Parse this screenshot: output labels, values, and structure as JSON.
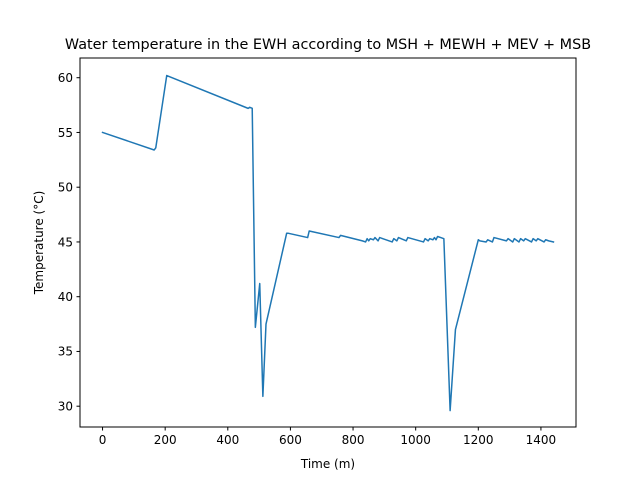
{
  "chart_data": {
    "type": "line",
    "title": "Water temperature in the EWH according to MSH + MEWH + MEV + MSB",
    "xlabel": "Time (m)",
    "ylabel": "Temperature (°C)",
    "xlim": [
      -72,
      1512
    ],
    "ylim": [
      28.1,
      61.8
    ],
    "xticks": [
      0,
      200,
      400,
      600,
      800,
      1000,
      1200,
      1400
    ],
    "yticks": [
      30,
      35,
      40,
      45,
      50,
      55,
      60
    ],
    "grid": false,
    "line_color": "#1f77b4",
    "series": [
      {
        "x": [
          0,
          165,
          170,
          205,
          465,
          470,
          478,
          488,
          502,
          512,
          522,
          588,
          592,
          655,
          660,
          755,
          760,
          830,
          840,
          845,
          850,
          855,
          865,
          870,
          880,
          885,
          895,
          925,
          930,
          940,
          945,
          970,
          975,
          1025,
          1030,
          1040,
          1045,
          1055,
          1060,
          1065,
          1070,
          1080,
          1090,
          1110,
          1127,
          1200,
          1205,
          1225,
          1230,
          1245,
          1250,
          1290,
          1295,
          1310,
          1315,
          1330,
          1335,
          1345,
          1350,
          1370,
          1375,
          1385,
          1390,
          1410,
          1415,
          1425,
          1440
        ],
        "y": [
          55,
          53.4,
          53.6,
          60.2,
          57.2,
          57.3,
          57.2,
          37.2,
          41.2,
          30.9,
          37.5,
          45.8,
          45.8,
          45.4,
          46.0,
          45.4,
          45.6,
          45.1,
          45.0,
          45.3,
          45.1,
          45.3,
          45.2,
          45.4,
          45.1,
          45.4,
          45.3,
          45.0,
          45.3,
          45.1,
          45.4,
          45.1,
          45.4,
          45.0,
          45.3,
          45.1,
          45.3,
          45.2,
          45.4,
          45.2,
          45.5,
          45.4,
          45.3,
          29.6,
          37.0,
          45.2,
          45.1,
          45.0,
          45.2,
          45.0,
          45.4,
          45.1,
          45.3,
          45.0,
          45.3,
          45.0,
          45.3,
          45.1,
          45.3,
          45.0,
          45.3,
          45.1,
          45.3,
          45.0,
          45.2,
          45.1,
          45.0
        ]
      }
    ]
  }
}
